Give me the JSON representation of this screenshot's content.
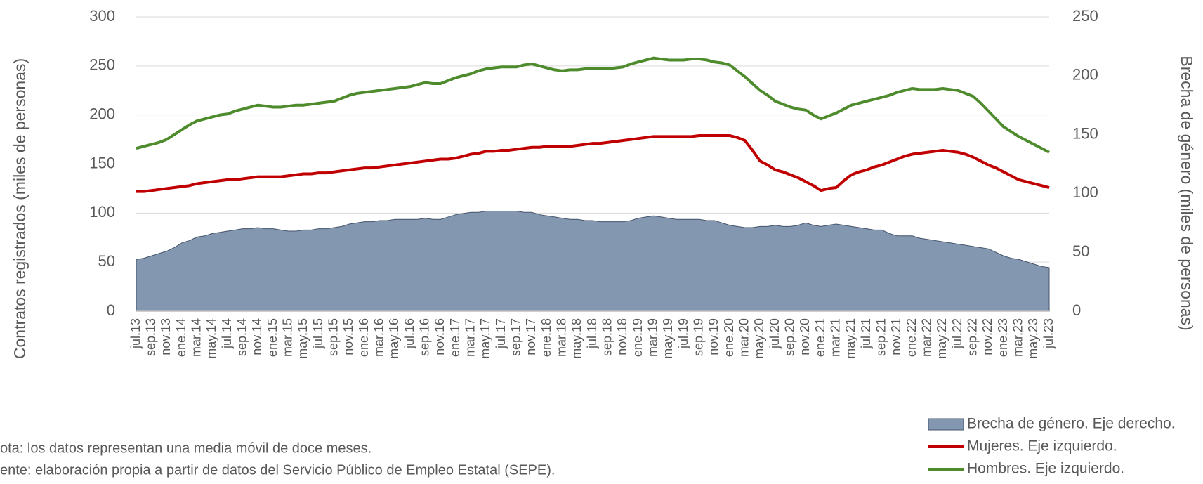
{
  "chart_data": {
    "type": "line",
    "ylabel": "Contratos registrados (miles de personas)",
    "y2label": "Brecha de género (miles de personas)",
    "notes": [
      "ota: los datos representan una media móvil de doce meses.",
      "ente: elaboración propia a partir de datos del Servicio Público de Empleo Estatal (SEPE)."
    ],
    "ylim": [
      0,
      300
    ],
    "yticks": [
      0,
      50,
      100,
      150,
      200,
      250,
      300
    ],
    "y2lim": [
      0,
      250
    ],
    "y2ticks": [
      0,
      50,
      100,
      150,
      200,
      250
    ],
    "grid": true,
    "legend": "bottom-right",
    "categories": [
      "jul.13",
      null,
      "sep.13",
      null,
      "nov.13",
      null,
      "ene.14",
      null,
      "mar.14",
      null,
      "may.14",
      null,
      "jul.14",
      null,
      "sep.14",
      null,
      "nov.14",
      null,
      "ene.15",
      null,
      "mar.15",
      null,
      "may.15",
      null,
      "jul.15",
      null,
      "sep.15",
      null,
      "nov.15",
      null,
      "ene.16",
      null,
      "mar.16",
      null,
      "may.16",
      null,
      "jul.16",
      null,
      "sep.16",
      null,
      "nov.16",
      null,
      "ene.17",
      null,
      "mar.17",
      null,
      "may.17",
      null,
      "jul.17",
      null,
      "sep.17",
      null,
      "nov.17",
      null,
      "ene.18",
      null,
      "mar.18",
      null,
      "may.18",
      null,
      "jul.18",
      null,
      "sep.18",
      null,
      "nov.18",
      null,
      "ene.19",
      null,
      "mar.19",
      null,
      "may.19",
      null,
      "jul.19",
      null,
      "sep.19",
      null,
      "nov.19",
      null,
      "ene.20",
      null,
      "mar.20",
      null,
      "may.20",
      null,
      "jul.20",
      null,
      "sep.20",
      null,
      "nov.20",
      null,
      "ene.21",
      null,
      "mar.21",
      null,
      "may.21",
      null,
      "jul.21",
      null,
      "sep.21",
      null,
      "nov.21",
      null,
      "ene.22",
      null,
      "mar.22",
      null,
      "may.22",
      null,
      "jul.22",
      null,
      "sep.22",
      null,
      "nov.22",
      null,
      "ene.23",
      null,
      "mar.23",
      null,
      "may.23",
      null,
      "jul.23"
    ],
    "series": [
      {
        "name": "Brecha de género. Eje derecho.",
        "type": "area",
        "axis": "y2",
        "color": "#8497b0",
        "edge": "#44546a",
        "values": [
          44,
          45,
          47,
          49,
          51,
          54,
          58,
          60,
          63,
          64,
          66,
          67,
          68,
          69,
          70,
          70,
          71,
          70,
          70,
          69,
          68,
          68,
          69,
          69,
          70,
          70,
          71,
          72,
          74,
          75,
          76,
          76,
          77,
          77,
          78,
          78,
          78,
          78,
          79,
          78,
          78,
          80,
          82,
          83,
          84,
          84,
          85,
          85,
          85,
          85,
          85,
          84,
          84,
          82,
          81,
          80,
          79,
          78,
          78,
          77,
          77,
          76,
          76,
          76,
          76,
          77,
          79,
          80,
          81,
          80,
          79,
          78,
          78,
          78,
          78,
          77,
          77,
          75,
          73,
          72,
          71,
          71,
          72,
          72,
          73,
          72,
          72,
          73,
          75,
          73,
          72,
          73,
          74,
          73,
          72,
          71,
          70,
          69,
          69,
          66,
          64,
          64,
          64,
          62,
          61,
          60,
          59,
          58,
          57,
          56,
          55,
          54,
          53,
          50,
          47,
          45,
          44,
          42,
          40,
          38,
          37
        ]
      },
      {
        "name": "Mujeres. Eje izquierdo.",
        "type": "line",
        "color": "#c00000",
        "values": [
          122,
          122,
          123,
          124,
          125,
          126,
          127,
          128,
          130,
          131,
          132,
          133,
          134,
          134,
          135,
          136,
          137,
          137,
          137,
          137,
          138,
          139,
          140,
          140,
          141,
          141,
          142,
          143,
          144,
          145,
          146,
          146,
          147,
          148,
          149,
          150,
          151,
          152,
          153,
          154,
          155,
          155,
          156,
          158,
          160,
          161,
          163,
          163,
          164,
          164,
          165,
          166,
          167,
          167,
          168,
          168,
          168,
          168,
          169,
          170,
          171,
          171,
          172,
          173,
          174,
          175,
          176,
          177,
          178,
          178,
          178,
          178,
          178,
          178,
          179,
          179,
          179,
          179,
          179,
          177,
          174,
          164,
          153,
          149,
          144,
          142,
          139,
          136,
          132,
          128,
          123,
          125,
          126,
          133,
          139,
          142,
          144,
          147,
          149,
          152,
          155,
          158,
          160,
          161,
          162,
          163,
          164,
          163,
          162,
          160,
          157,
          153,
          149,
          146,
          142,
          138,
          134,
          132,
          130,
          128,
          126
        ]
      },
      {
        "name": "Hombres. Eje izquierdo.",
        "type": "line",
        "color": "#4e8b2c",
        "values": [
          166,
          168,
          170,
          172,
          175,
          180,
          185,
          190,
          194,
          196,
          198,
          200,
          201,
          204,
          206,
          208,
          210,
          209,
          208,
          208,
          209,
          210,
          210,
          211,
          212,
          213,
          214,
          217,
          220,
          222,
          223,
          224,
          225,
          226,
          227,
          228,
          229,
          231,
          233,
          232,
          232,
          235,
          238,
          240,
          242,
          245,
          247,
          248,
          249,
          249,
          249,
          251,
          252,
          250,
          248,
          246,
          245,
          246,
          246,
          247,
          247,
          247,
          247,
          248,
          249,
          252,
          254,
          256,
          258,
          257,
          256,
          256,
          256,
          257,
          257,
          256,
          254,
          253,
          251,
          245,
          239,
          232,
          225,
          220,
          214,
          211,
          208,
          206,
          205,
          200,
          196,
          199,
          202,
          206,
          210,
          212,
          214,
          216,
          218,
          220,
          223,
          225,
          227,
          226,
          226,
          226,
          227,
          226,
          225,
          222,
          219,
          212,
          204,
          196,
          188,
          183,
          178,
          174,
          170,
          166,
          162
        ]
      }
    ]
  }
}
